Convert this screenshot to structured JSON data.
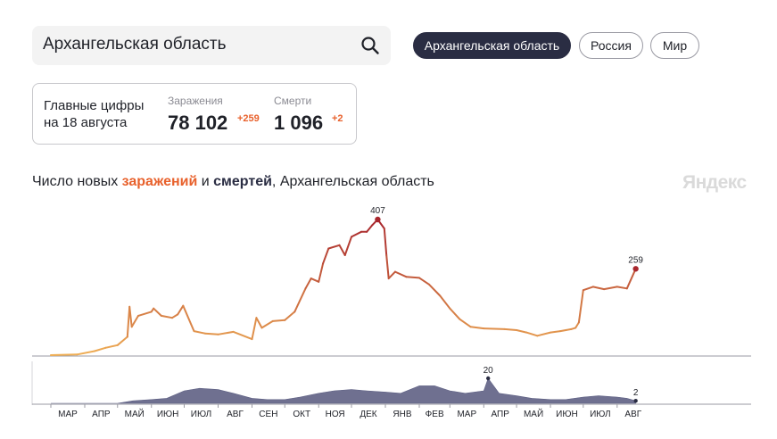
{
  "search": {
    "value": "Архангельская область"
  },
  "chips": [
    {
      "label": "Архангельская область",
      "active": true
    },
    {
      "label": "Россия",
      "active": false
    },
    {
      "label": "Мир",
      "active": false
    }
  ],
  "summary": {
    "title_line1": "Главные цифры",
    "title_line2": "на 18 августа",
    "infections_label": "Заражения",
    "infections_value": "78 102",
    "infections_delta": "+259",
    "deaths_label": "Смерти",
    "deaths_value": "1 096",
    "deaths_delta": "+2"
  },
  "chart_title": {
    "part1": "Число новых ",
    "infections_word": "заражений",
    "part2": " и ",
    "deaths_word": "смертей",
    "part3": ", Архангельская область"
  },
  "brand": "Яндекс",
  "colors": {
    "accent": "#e8612c",
    "navy": "#2a2d43",
    "line_low": "#f0b055",
    "line_high": "#a8262d",
    "deaths_fill": "#5f6184"
  },
  "chart_data": [
    {
      "type": "line",
      "title": "Число новых заражений",
      "x": [
        "2020-03-01",
        "2020-03-25",
        "2020-04-10",
        "2020-04-20",
        "2020-05-01",
        "2020-05-10",
        "2020-05-12",
        "2020-05-14",
        "2020-05-20",
        "2020-06-01",
        "2020-06-03",
        "2020-06-10",
        "2020-06-20",
        "2020-06-25",
        "2020-06-30",
        "2020-07-10",
        "2020-07-20",
        "2020-08-01",
        "2020-08-15",
        "2020-09-01",
        "2020-09-05",
        "2020-09-10",
        "2020-09-20",
        "2020-10-01",
        "2020-10-10",
        "2020-10-20",
        "2020-10-25",
        "2020-11-01",
        "2020-11-05",
        "2020-11-10",
        "2020-11-20",
        "2020-11-25",
        "2020-12-01",
        "2020-12-10",
        "2020-12-15",
        "2020-12-20",
        "2020-12-25",
        "2020-12-31",
        "2021-01-02",
        "2021-01-04",
        "2021-01-10",
        "2021-01-20",
        "2021-02-01",
        "2021-02-10",
        "2021-02-20",
        "2021-03-01",
        "2021-03-10",
        "2021-03-20",
        "2021-04-01",
        "2021-04-20",
        "2021-05-01",
        "2021-05-10",
        "2021-05-20",
        "2021-06-01",
        "2021-06-10",
        "2021-06-20",
        "2021-06-24",
        "2021-06-27",
        "2021-07-01",
        "2021-07-10",
        "2021-07-20",
        "2021-08-01",
        "2021-08-10",
        "2021-08-18"
      ],
      "y": [
        0,
        2,
        12,
        22,
        30,
        55,
        145,
        85,
        118,
        130,
        140,
        118,
        112,
        122,
        148,
        72,
        65,
        62,
        70,
        48,
        112,
        82,
        102,
        105,
        130,
        200,
        230,
        220,
        275,
        320,
        330,
        300,
        355,
        370,
        370,
        390,
        407,
        380,
        300,
        230,
        250,
        235,
        232,
        212,
        178,
        140,
        108,
        85,
        80,
        78,
        75,
        68,
        58,
        68,
        72,
        78,
        82,
        98,
        195,
        205,
        198,
        205,
        200,
        259
      ],
      "markers": [
        {
          "x": "2020-12-25",
          "label": "407"
        },
        {
          "x": "2021-08-18",
          "label": "259"
        }
      ]
    },
    {
      "type": "area",
      "title": "Число новых смертей",
      "x": [
        "2020-03-01",
        "2020-04-01",
        "2020-05-01",
        "2020-05-15",
        "2020-06-01",
        "2020-06-15",
        "2020-07-01",
        "2020-07-15",
        "2020-08-01",
        "2020-08-15",
        "2020-09-01",
        "2020-09-15",
        "2020-10-01",
        "2020-10-15",
        "2020-11-01",
        "2020-11-15",
        "2020-12-01",
        "2020-12-15",
        "2021-01-01",
        "2021-01-15",
        "2021-02-01",
        "2021-02-15",
        "2021-03-01",
        "2021-03-15",
        "2021-04-01",
        "2021-04-05",
        "2021-04-15",
        "2021-05-01",
        "2021-05-15",
        "2021-06-01",
        "2021-06-15",
        "2021-07-01",
        "2021-07-15",
        "2021-08-01",
        "2021-08-10",
        "2021-08-18"
      ],
      "y": [
        0,
        0,
        0,
        2,
        3,
        4,
        10,
        12,
        11,
        8,
        4,
        3,
        3,
        5,
        8,
        10,
        11,
        10,
        9,
        8,
        14,
        14,
        10,
        8,
        10,
        20,
        8,
        6,
        4,
        3,
        3,
        5,
        6,
        5,
        4,
        2
      ],
      "markers": [
        {
          "x": "2021-04-05",
          "label": "20"
        },
        {
          "x": "2021-08-18",
          "label": "2"
        }
      ]
    }
  ],
  "x_ticks": [
    "МАР",
    "АПР",
    "МАЙ",
    "ИЮН",
    "ИЮЛ",
    "АВГ",
    "СЕН",
    "ОКТ",
    "НОЯ",
    "ДЕК",
    "ЯНВ",
    "ФЕВ",
    "МАР",
    "АПР",
    "МАЙ",
    "ИЮН",
    "ИЮЛ",
    "АВГ"
  ]
}
